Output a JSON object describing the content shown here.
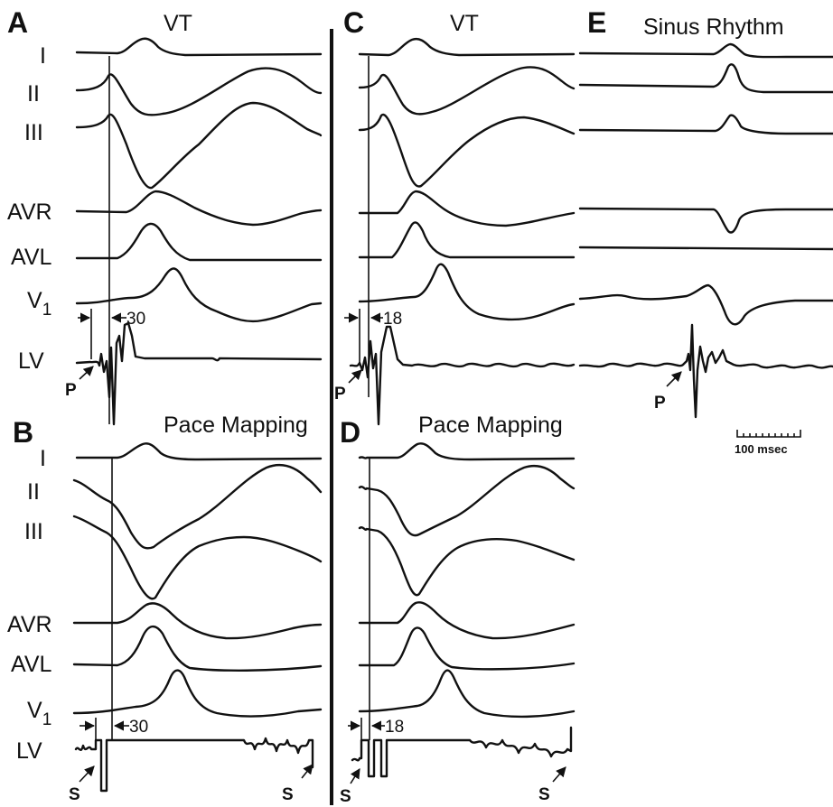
{
  "panels": {
    "A": {
      "letter": "A",
      "title": "VT",
      "interval": "30",
      "marker": "P",
      "leads": [
        "I",
        "II",
        "III",
        "AVR",
        "AVL",
        "V",
        "LV"
      ],
      "v_sub": "1"
    },
    "B": {
      "letter": "B",
      "title": "Pace Mapping",
      "interval": "30",
      "marker": "S",
      "marker_right": "S",
      "leads": [
        "I",
        "II",
        "III",
        "AVR",
        "AVL",
        "V",
        "LV"
      ],
      "v_sub": "1"
    },
    "C": {
      "letter": "C",
      "title": "VT",
      "interval": "18",
      "marker": "P"
    },
    "D": {
      "letter": "D",
      "title": "Pace Mapping",
      "interval": "18",
      "marker": "S",
      "marker_right": "S"
    },
    "E": {
      "letter": "E",
      "title": "Sinus Rhythm",
      "marker": "P"
    }
  },
  "scale_bar": {
    "label": "100 msec"
  }
}
